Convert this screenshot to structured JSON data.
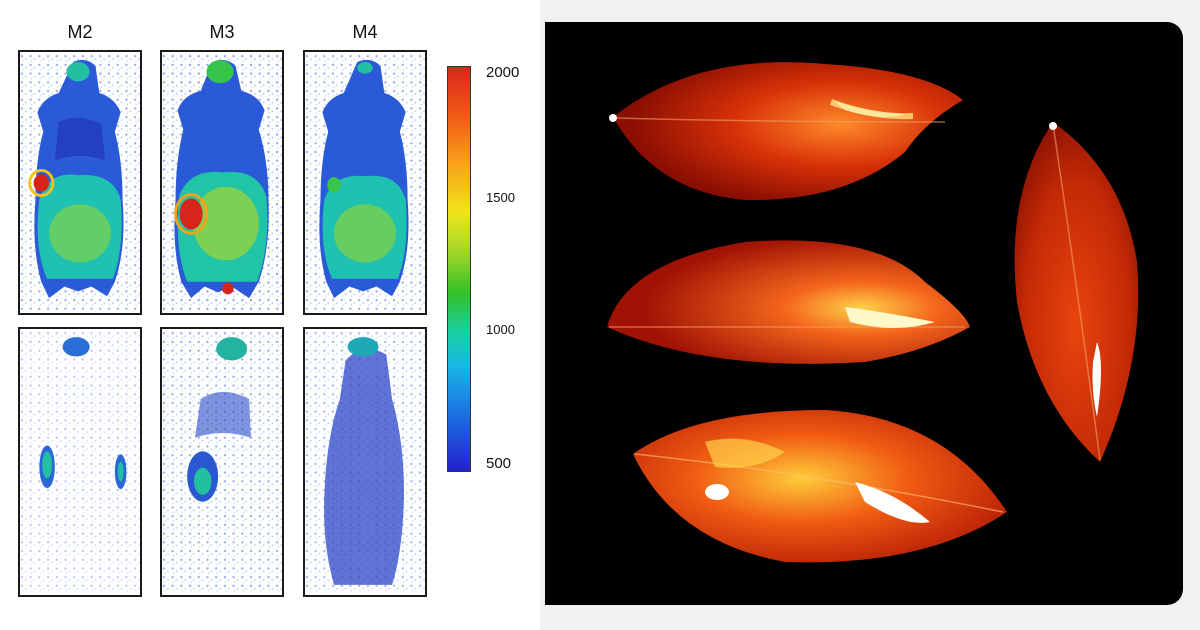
{
  "figure": {
    "column_labels": [
      "M2",
      "M3",
      "M4"
    ],
    "colorbar": {
      "ticks": [
        "2000",
        "1500",
        "1000",
        "500"
      ],
      "colors": [
        "#d8261c",
        "#f8a21a",
        "#efe51c",
        "#34c02a",
        "#18cfa6",
        "#1d6fe0",
        "#2222cc"
      ]
    },
    "left_panel_background": "#ffffff",
    "right_panel_background": "#000000",
    "leaf_colors": [
      "#7a0b02",
      "#c82a06",
      "#f4661c",
      "#ffd24a",
      "#ffffff"
    ]
  }
}
